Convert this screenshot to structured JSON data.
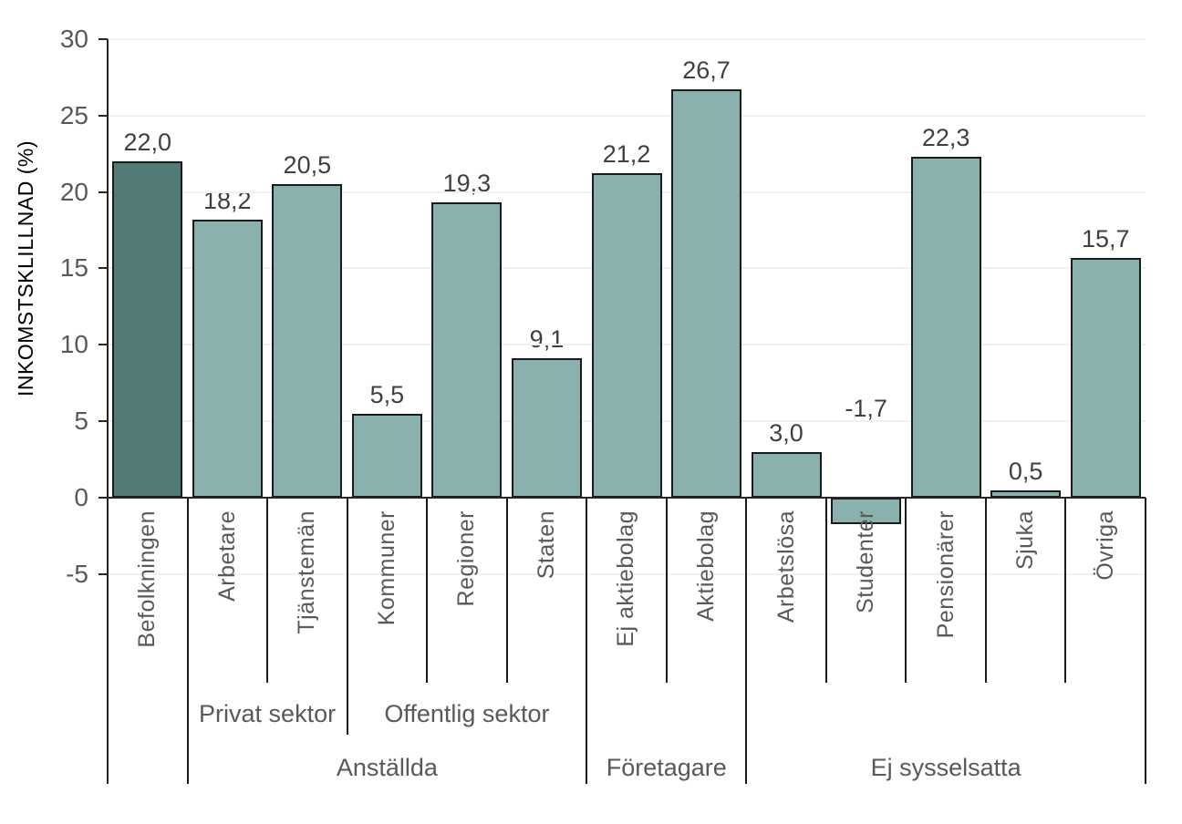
{
  "chart_data": {
    "type": "bar",
    "title": "",
    "xlabel": "",
    "ylabel": "INKOMSTSKLILLNAD (%)",
    "ylim": [
      -5,
      30
    ],
    "yticks": [
      30,
      25,
      20,
      15,
      10,
      5,
      0,
      -5
    ],
    "ytick_labels": [
      "30",
      "25",
      "20",
      "15",
      "10",
      "5",
      "0",
      "-5"
    ],
    "grid": true,
    "legend": "none",
    "decimal_separator": ",",
    "categories": [
      "Befolkningen",
      "Arbetare",
      "Tjänstemän",
      "Kommuner",
      "Regioner",
      "Staten",
      "Ej aktiebolag",
      "Aktiebolag",
      "Arbetslösa",
      "Studenter",
      "Pensionärer",
      "Sjuka",
      "Övriga"
    ],
    "values": [
      22.0,
      18.2,
      20.5,
      5.5,
      19.3,
      9.1,
      21.2,
      26.7,
      3.0,
      -1.7,
      22.3,
      0.5,
      15.7
    ],
    "value_labels": [
      "22,0",
      "18,2",
      "20,5",
      "5,5",
      "19,3",
      "9,1",
      "21,2",
      "26,7",
      "3,0",
      "-1,7",
      "22,3",
      "0,5",
      "15,7"
    ],
    "highlight_index": 0,
    "subgroups": [
      {
        "label": "Privat sektor",
        "from": 1,
        "to": 2
      },
      {
        "label": "Offentlig sektor",
        "from": 3,
        "to": 5
      }
    ],
    "groups": [
      {
        "label": "Anställda",
        "from": 1,
        "to": 5
      },
      {
        "label": "Företagare",
        "from": 6,
        "to": 7
      },
      {
        "label": "Ej sysselsatta",
        "from": 8,
        "to": 12
      }
    ],
    "colors": {
      "bar_highlight": "#527A77",
      "bar_default": "#8AB1AE",
      "bar_border": "#1A1A1A",
      "axis_line": "#262626",
      "gridline": "#F1F1F1",
      "axis_text": "#595959",
      "data_label_text": "#404040"
    }
  }
}
